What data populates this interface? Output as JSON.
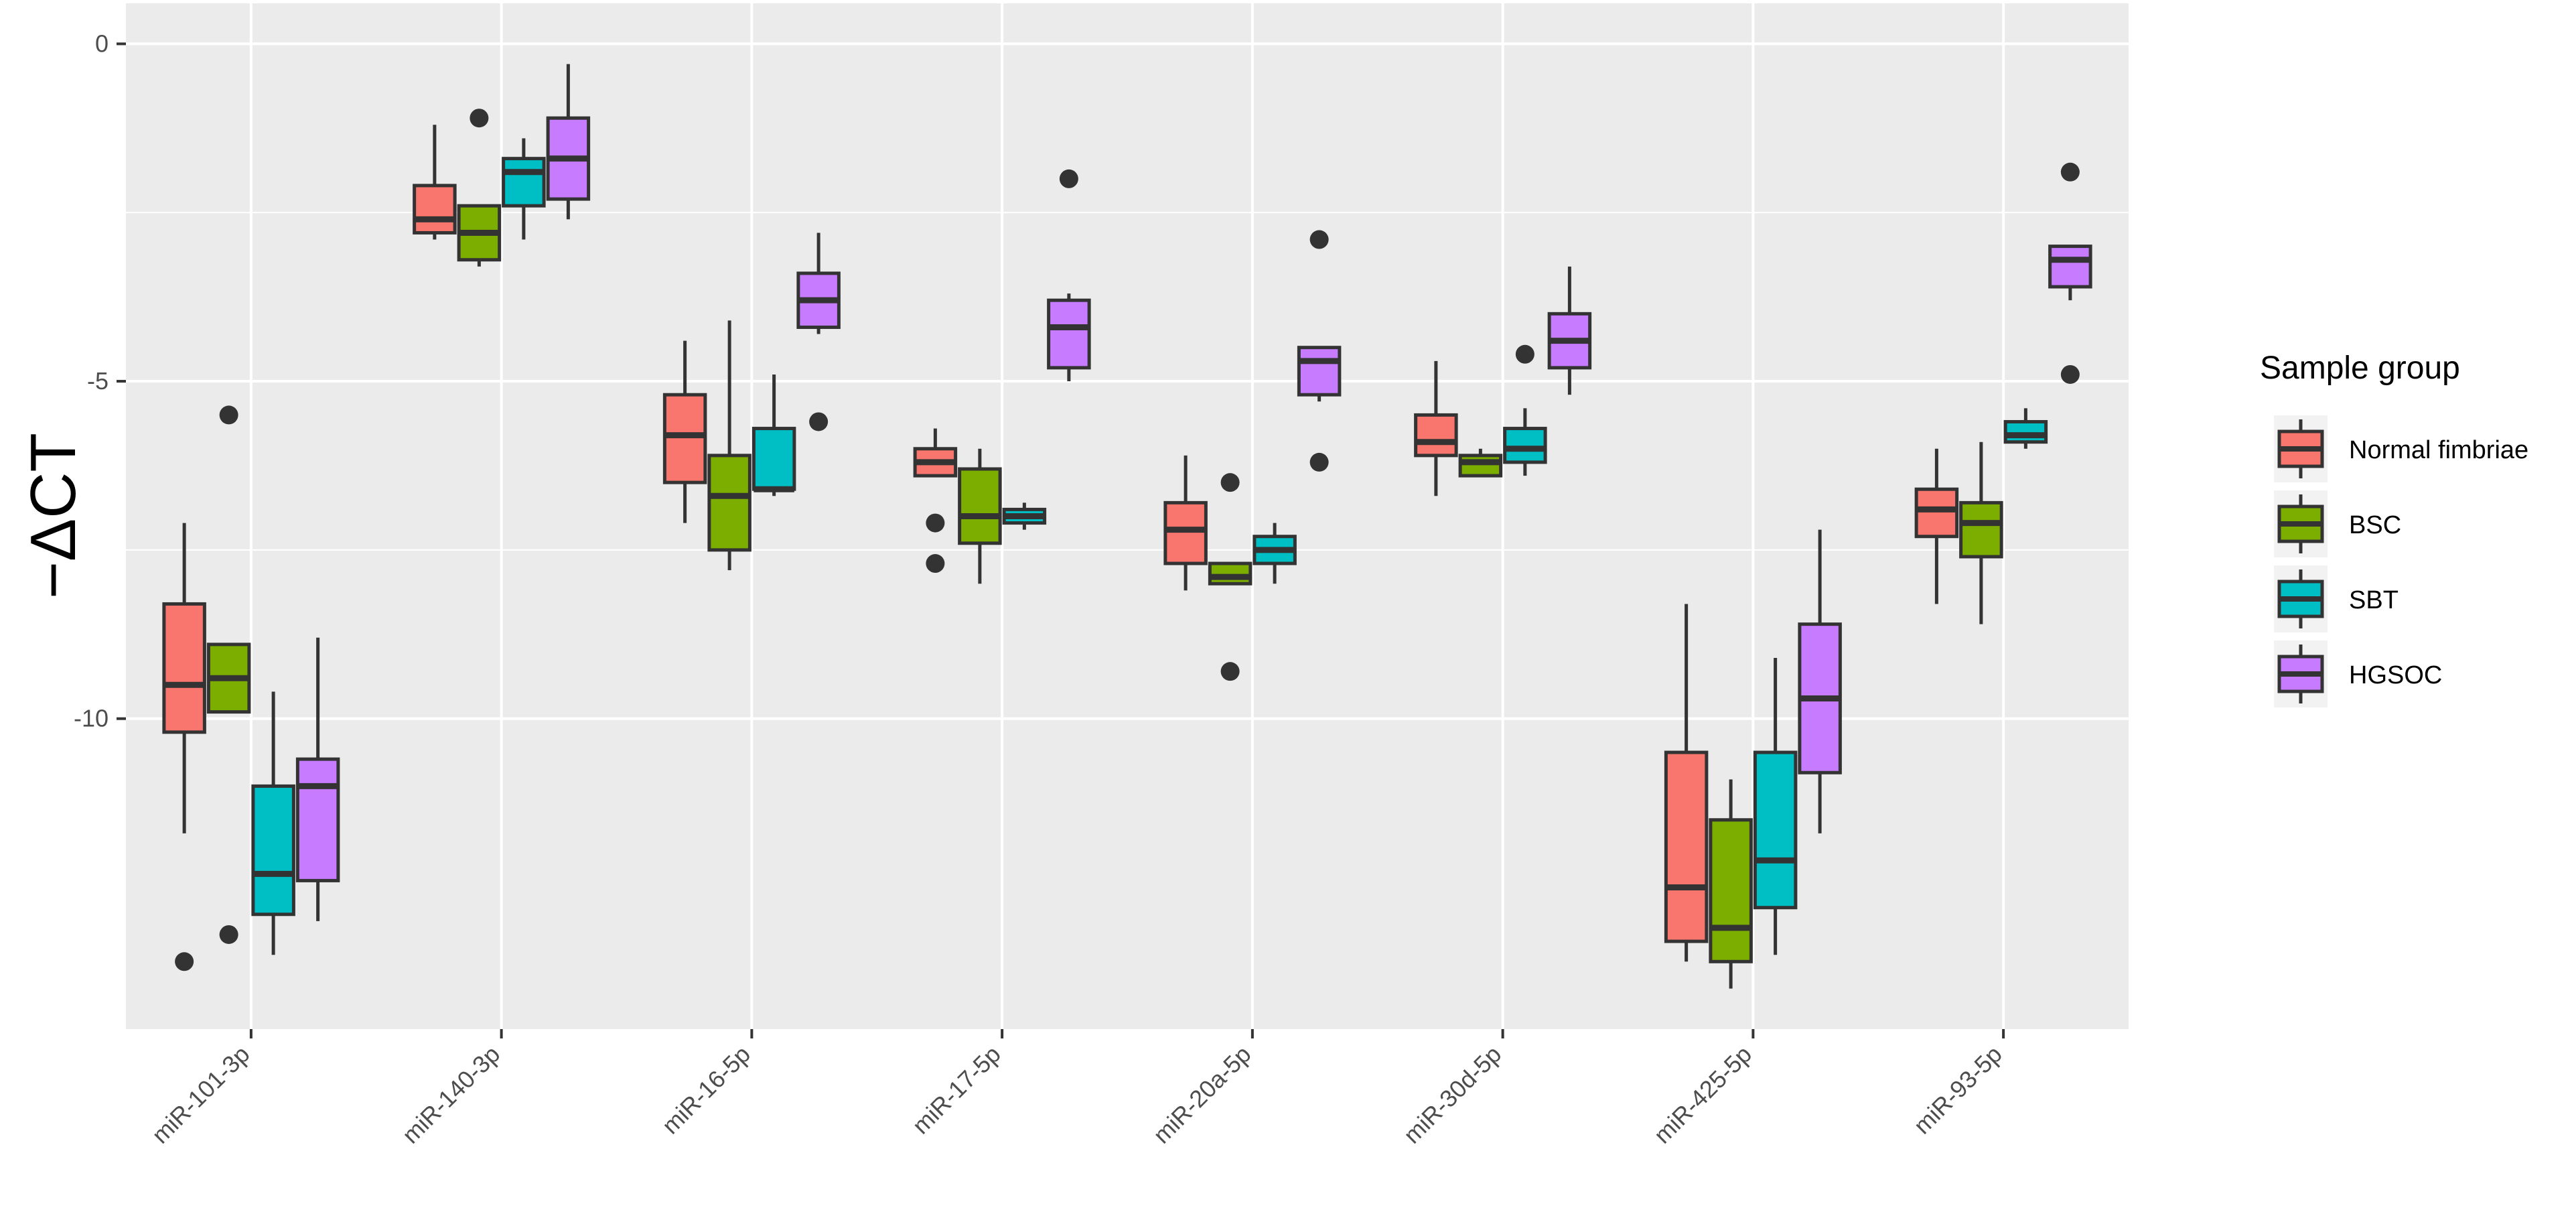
{
  "chart_data": {
    "type": "boxplot",
    "title": "",
    "xlabel": "",
    "ylabel": "−ΔCT",
    "ylim": [
      -14.6,
      0.6
    ],
    "y_ticks": [
      0,
      -5,
      -10
    ],
    "y_tick_labels": [
      "0",
      "-5",
      "-10"
    ],
    "grid": true,
    "categories": [
      "miR-101-3p",
      "miR-140-3p",
      "miR-16-5p",
      "miR-17-5p",
      "miR-20a-5p",
      "miR-30d-5p",
      "miR-425-5p",
      "miR-93-5p"
    ],
    "legend": {
      "title": "Sample group",
      "position": "right",
      "entries": [
        "Normal fimbriae",
        "BSC",
        "SBT",
        "HGSOC"
      ]
    },
    "series": [
      {
        "name": "Normal fimbriae",
        "color": "#F8766D",
        "boxes": [
          {
            "category": "miR-101-3p",
            "whisker_low": -11.7,
            "q1": -10.2,
            "median": -9.5,
            "q3": -8.3,
            "whisker_high": -7.1,
            "outliers": [
              -13.6
            ]
          },
          {
            "category": "miR-140-3p",
            "whisker_low": -2.9,
            "q1": -2.8,
            "median": -2.6,
            "q3": -2.1,
            "whisker_high": -1.2,
            "outliers": []
          },
          {
            "category": "miR-16-5p",
            "whisker_low": -7.1,
            "q1": -6.5,
            "median": -5.8,
            "q3": -5.2,
            "whisker_high": -4.4,
            "outliers": []
          },
          {
            "category": "miR-17-5p",
            "whisker_low": -6.4,
            "q1": -6.4,
            "median": -6.2,
            "q3": -6.0,
            "whisker_high": -5.7,
            "outliers": [
              -7.1,
              -7.7
            ]
          },
          {
            "category": "miR-20a-5p",
            "whisker_low": -8.1,
            "q1": -7.7,
            "median": -7.2,
            "q3": -6.8,
            "whisker_high": -6.1,
            "outliers": []
          },
          {
            "category": "miR-30d-5p",
            "whisker_low": -6.7,
            "q1": -6.1,
            "median": -5.9,
            "q3": -5.5,
            "whisker_high": -4.7,
            "outliers": []
          },
          {
            "category": "miR-425-5p",
            "whisker_low": -13.6,
            "q1": -13.3,
            "median": -12.5,
            "q3": -10.5,
            "whisker_high": -8.3,
            "outliers": []
          },
          {
            "category": "miR-93-5p",
            "whisker_low": -8.3,
            "q1": -7.3,
            "median": -6.9,
            "q3": -6.6,
            "whisker_high": -6.0,
            "outliers": []
          }
        ]
      },
      {
        "name": "BSC",
        "color": "#7CAE00",
        "boxes": [
          {
            "category": "miR-101-3p",
            "whisker_low": -9.9,
            "q1": -9.9,
            "median": -9.4,
            "q3": -8.9,
            "whisker_high": -8.9,
            "outliers": [
              -5.5,
              -13.2
            ]
          },
          {
            "category": "miR-140-3p",
            "whisker_low": -3.3,
            "q1": -3.2,
            "median": -2.8,
            "q3": -2.4,
            "whisker_high": -2.4,
            "outliers": [
              -1.1
            ]
          },
          {
            "category": "miR-16-5p",
            "whisker_low": -7.8,
            "q1": -7.5,
            "median": -6.7,
            "q3": -6.1,
            "whisker_high": -4.1,
            "outliers": []
          },
          {
            "category": "miR-17-5p",
            "whisker_low": -8.0,
            "q1": -7.4,
            "median": -7.0,
            "q3": -6.3,
            "whisker_high": -6.0,
            "outliers": []
          },
          {
            "category": "miR-20a-5p",
            "whisker_low": -8.0,
            "q1": -8.0,
            "median": -7.9,
            "q3": -7.7,
            "whisker_high": -7.7,
            "outliers": [
              -6.5,
              -9.3
            ]
          },
          {
            "category": "miR-30d-5p",
            "whisker_low": -6.4,
            "q1": -6.4,
            "median": -6.2,
            "q3": -6.1,
            "whisker_high": -6.0,
            "outliers": []
          },
          {
            "category": "miR-425-5p",
            "whisker_low": -14.0,
            "q1": -13.6,
            "median": -13.1,
            "q3": -11.5,
            "whisker_high": -10.9,
            "outliers": []
          },
          {
            "category": "miR-93-5p",
            "whisker_low": -8.6,
            "q1": -7.6,
            "median": -7.1,
            "q3": -6.8,
            "whisker_high": -5.9,
            "outliers": []
          }
        ]
      },
      {
        "name": "SBT",
        "color": "#00BFC4",
        "boxes": [
          {
            "category": "miR-101-3p",
            "whisker_low": -13.5,
            "q1": -12.9,
            "median": -12.3,
            "q3": -11.0,
            "whisker_high": -9.6,
            "outliers": []
          },
          {
            "category": "miR-140-3p",
            "whisker_low": -2.9,
            "q1": -2.4,
            "median": -1.9,
            "q3": -1.7,
            "whisker_high": -1.4,
            "outliers": []
          },
          {
            "category": "miR-16-5p",
            "whisker_low": -6.7,
            "q1": -6.6,
            "median": -6.6,
            "q3": -5.7,
            "whisker_high": -4.9,
            "outliers": []
          },
          {
            "category": "miR-17-5p",
            "whisker_low": -7.2,
            "q1": -7.1,
            "median": -7.0,
            "q3": -6.9,
            "whisker_high": -6.8,
            "outliers": []
          },
          {
            "category": "miR-20a-5p",
            "whisker_low": -8.0,
            "q1": -7.7,
            "median": -7.5,
            "q3": -7.3,
            "whisker_high": -7.1,
            "outliers": []
          },
          {
            "category": "miR-30d-5p",
            "whisker_low": -6.4,
            "q1": -6.2,
            "median": -6.0,
            "q3": -5.7,
            "whisker_high": -5.4,
            "outliers": [
              -4.6
            ]
          },
          {
            "category": "miR-425-5p",
            "whisker_low": -13.5,
            "q1": -12.8,
            "median": -12.1,
            "q3": -10.5,
            "whisker_high": -9.1,
            "outliers": []
          },
          {
            "category": "miR-93-5p",
            "whisker_low": -6.0,
            "q1": -5.9,
            "median": -5.8,
            "q3": -5.6,
            "whisker_high": -5.4,
            "outliers": []
          }
        ]
      },
      {
        "name": "HGSOC",
        "color": "#C77CFF",
        "boxes": [
          {
            "category": "miR-101-3p",
            "whisker_low": -13.0,
            "q1": -12.4,
            "median": -11.0,
            "q3": -10.6,
            "whisker_high": -8.8,
            "outliers": []
          },
          {
            "category": "miR-140-3p",
            "whisker_low": -2.6,
            "q1": -2.3,
            "median": -1.7,
            "q3": -1.1,
            "whisker_high": -0.3,
            "outliers": []
          },
          {
            "category": "miR-16-5p",
            "whisker_low": -4.3,
            "q1": -4.2,
            "median": -3.8,
            "q3": -3.4,
            "whisker_high": -2.8,
            "outliers": [
              -5.6
            ]
          },
          {
            "category": "miR-17-5p",
            "whisker_low": -5.0,
            "q1": -4.8,
            "median": -4.2,
            "q3": -3.8,
            "whisker_high": -3.7,
            "outliers": [
              -2.0
            ]
          },
          {
            "category": "miR-20a-5p",
            "whisker_low": -5.3,
            "q1": -5.2,
            "median": -4.7,
            "q3": -4.5,
            "whisker_high": -4.5,
            "outliers": [
              -2.9,
              -6.2
            ]
          },
          {
            "category": "miR-30d-5p",
            "whisker_low": -5.2,
            "q1": -4.8,
            "median": -4.4,
            "q3": -4.0,
            "whisker_high": -3.3,
            "outliers": []
          },
          {
            "category": "miR-425-5p",
            "whisker_low": -11.7,
            "q1": -10.8,
            "median": -9.7,
            "q3": -8.6,
            "whisker_high": -7.2,
            "outliers": []
          },
          {
            "category": "miR-93-5p",
            "whisker_low": -3.8,
            "q1": -3.6,
            "median": -3.2,
            "q3": -3.0,
            "whisker_high": -3.0,
            "outliers": [
              -1.9,
              -4.9
            ]
          }
        ]
      }
    ]
  }
}
